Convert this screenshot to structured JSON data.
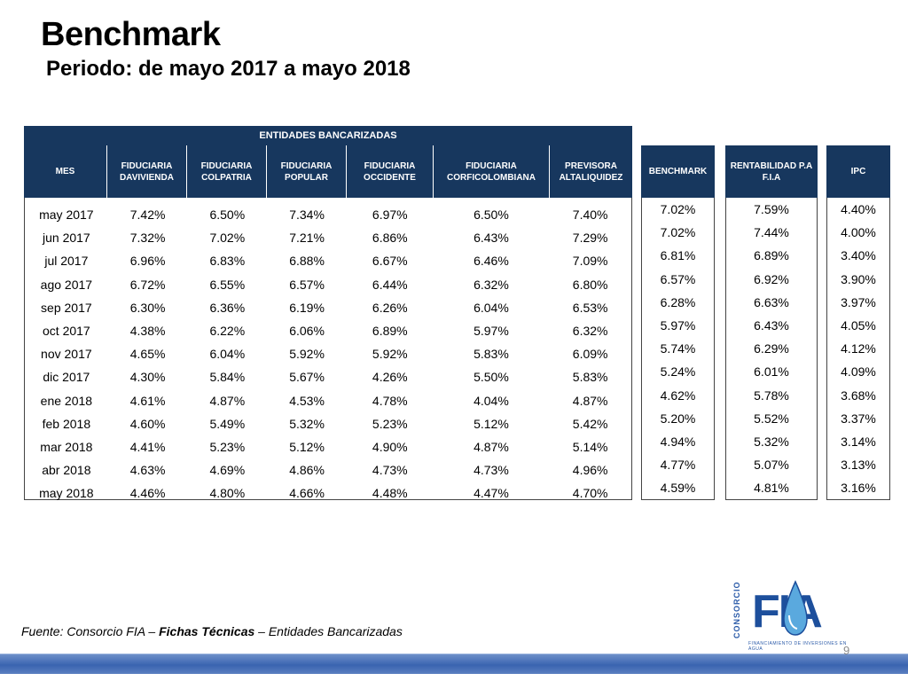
{
  "slide": {
    "title": "Benchmark",
    "subtitle": "Periodo: de mayo 2017 a mayo 2018",
    "page_number": "9"
  },
  "table": {
    "group_header": "ENTIDADES BANCARIZADAS",
    "columns": [
      {
        "label": "MES"
      },
      {
        "label": "FIDUCIARIA DAVIVIENDA"
      },
      {
        "label": "FIDUCIARIA COLPATRIA"
      },
      {
        "label": "FIDUCIARIA POPULAR"
      },
      {
        "label": "FIDUCIARIA OCCIDENTE"
      },
      {
        "label": "FIDUCIARIA CORFICOLOMBIANA"
      },
      {
        "label": "PREVISORA ALTALIQUIDEZ"
      }
    ],
    "rows": [
      [
        "may 2017",
        "7.42%",
        "6.50%",
        "7.34%",
        "6.97%",
        "6.50%",
        "7.40%"
      ],
      [
        "jun 2017",
        "7.32%",
        "7.02%",
        "7.21%",
        "6.86%",
        "6.43%",
        "7.29%"
      ],
      [
        "jul 2017",
        "6.96%",
        "6.83%",
        "6.88%",
        "6.67%",
        "6.46%",
        "7.09%"
      ],
      [
        "ago 2017",
        "6.72%",
        "6.55%",
        "6.57%",
        "6.44%",
        "6.32%",
        "6.80%"
      ],
      [
        "sep 2017",
        "6.30%",
        "6.36%",
        "6.19%",
        "6.26%",
        "6.04%",
        "6.53%"
      ],
      [
        "oct 2017",
        "4.38%",
        "6.22%",
        "6.06%",
        "6.89%",
        "5.97%",
        "6.32%"
      ],
      [
        "nov 2017",
        "4.65%",
        "6.04%",
        "5.92%",
        "5.92%",
        "5.83%",
        "6.09%"
      ],
      [
        "dic 2017",
        "4.30%",
        "5.84%",
        "5.67%",
        "4.26%",
        "5.50%",
        "5.83%"
      ],
      [
        "ene 2018",
        "4.61%",
        "4.87%",
        "4.53%",
        "4.78%",
        "4.04%",
        "4.87%"
      ],
      [
        "feb 2018",
        "4.60%",
        "5.49%",
        "5.32%",
        "5.23%",
        "5.12%",
        "5.42%"
      ],
      [
        "mar 2018",
        "4.41%",
        "5.23%",
        "5.12%",
        "4.90%",
        "4.87%",
        "5.14%"
      ],
      [
        "abr 2018",
        "4.63%",
        "4.69%",
        "4.86%",
        "4.73%",
        "4.73%",
        "4.96%"
      ],
      [
        "may 2018",
        "4.46%",
        "4.80%",
        "4.66%",
        "4.48%",
        "4.47%",
        "4.70%"
      ]
    ]
  },
  "side_tables": [
    {
      "label": "BENCHMARK",
      "values": [
        "7.02%",
        "7.02%",
        "6.81%",
        "6.57%",
        "6.28%",
        "5.97%",
        "5.74%",
        "5.24%",
        "4.62%",
        "5.20%",
        "4.94%",
        "4.77%",
        "4.59%"
      ]
    },
    {
      "label": "RENTABILIDAD P.A F.I.A",
      "values": [
        "7.59%",
        "7.44%",
        "6.89%",
        "6.92%",
        "6.63%",
        "6.43%",
        "6.29%",
        "6.01%",
        "5.78%",
        "5.52%",
        "5.32%",
        "5.07%",
        "4.81%"
      ]
    },
    {
      "label": "IPC",
      "values": [
        "4.40%",
        "4.00%",
        "3.40%",
        "3.90%",
        "3.97%",
        "4.05%",
        "4.12%",
        "4.09%",
        "3.68%",
        "3.37%",
        "3.14%",
        "3.13%",
        "3.16%"
      ]
    }
  ],
  "source": {
    "prefix": "Fuente: Consorcio FIA – ",
    "bold": "Fichas Técnicas",
    "suffix": " – Entidades Bancarizadas"
  },
  "logo": {
    "side_text": "CONSORCIO",
    "word": "FIA",
    "tagline": "FINANCIAMIENTO DE INVERSIONES EN AGUA"
  },
  "colors": {
    "header_bg": "#17375e",
    "footer_bar": "#3a64b0",
    "logo_blue": "#1d4f9c"
  }
}
